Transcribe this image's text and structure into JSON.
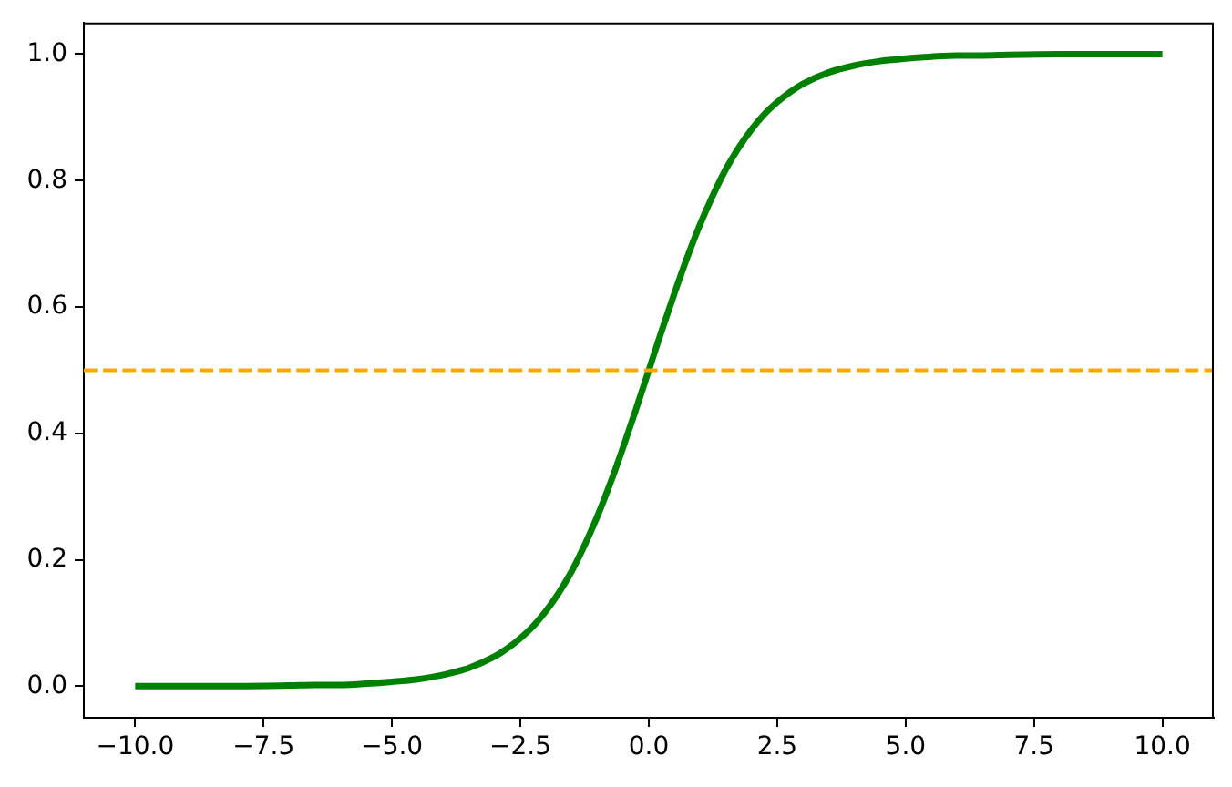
{
  "chart_data": {
    "type": "line",
    "x": [
      -10,
      -9,
      -8,
      -7,
      -6.5,
      -6,
      -5.5,
      -5,
      -4.5,
      -4,
      -3.5,
      -3,
      -2.75,
      -2.5,
      -2.25,
      -2,
      -1.75,
      -1.5,
      -1.25,
      -1,
      -0.75,
      -0.5,
      -0.25,
      0,
      0.25,
      0.5,
      0.75,
      1,
      1.25,
      1.5,
      1.75,
      2,
      2.25,
      2.5,
      2.75,
      3,
      3.5,
      4,
      4.5,
      5,
      5.5,
      6,
      6.5,
      7,
      8,
      9,
      10
    ],
    "series": [
      {
        "color": "#008000",
        "values": [
          0.0,
          0.0,
          0.0,
          0.001,
          0.002,
          0.002,
          0.004,
          0.007,
          0.011,
          0.018,
          0.029,
          0.047,
          0.06,
          0.076,
          0.095,
          0.119,
          0.148,
          0.182,
          0.223,
          0.269,
          0.321,
          0.378,
          0.438,
          0.5,
          0.562,
          0.622,
          0.679,
          0.731,
          0.777,
          0.818,
          0.852,
          0.881,
          0.905,
          0.924,
          0.94,
          0.953,
          0.971,
          0.982,
          0.989,
          0.993,
          0.996,
          0.998,
          0.998,
          0.999,
          1.0,
          1.0,
          1.0
        ]
      }
    ],
    "xlim": [
      -11,
      11
    ],
    "xticks": [
      {
        "value": -10,
        "label": "−10.0"
      },
      {
        "value": -7.5,
        "label": "−7.5"
      },
      {
        "value": -5,
        "label": "−5.0"
      },
      {
        "value": -2.5,
        "label": "−2.5"
      },
      {
        "value": 0,
        "label": "0.0"
      },
      {
        "value": 2.5,
        "label": "2.5"
      },
      {
        "value": 5,
        "label": "5.0"
      },
      {
        "value": 7.5,
        "label": "7.5"
      },
      {
        "value": 10,
        "label": "10.0"
      }
    ],
    "ylim": [
      -0.05,
      1.05
    ],
    "yticks": [
      {
        "value": 0,
        "label": "0.0"
      },
      {
        "value": 0.2,
        "label": "0.2"
      },
      {
        "value": 0.4,
        "label": "0.4"
      },
      {
        "value": 0.6,
        "label": "0.6"
      },
      {
        "value": 0.8,
        "label": "0.8"
      },
      {
        "value": 1,
        "label": "1.0"
      }
    ],
    "ref_lines": [
      {
        "axis": "y",
        "value": 0.5,
        "color": "#ffa500",
        "line_style": "dashed"
      }
    ],
    "grid": false,
    "legend": false,
    "marker": "none",
    "line_style": "solid"
  }
}
